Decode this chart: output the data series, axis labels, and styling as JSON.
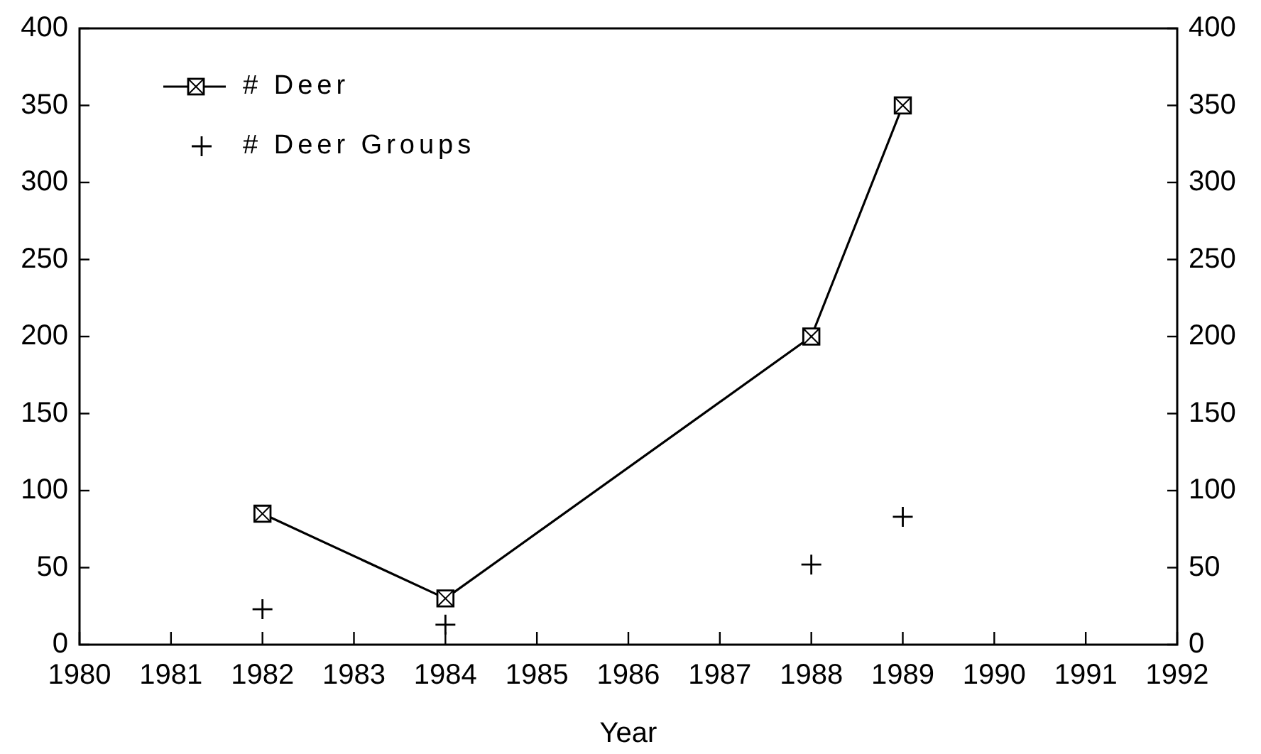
{
  "chart_data": {
    "type": "line",
    "xlabel": "Year",
    "x": [
      1982,
      1984,
      1988,
      1989
    ],
    "xlim": [
      1980,
      1992
    ],
    "xticks": [
      1980,
      1981,
      1982,
      1983,
      1984,
      1985,
      1986,
      1987,
      1988,
      1989,
      1990,
      1991,
      1992
    ],
    "ylim": [
      0,
      400
    ],
    "yticks": [
      0,
      50,
      100,
      150,
      200,
      250,
      300,
      350,
      400
    ],
    "y2lim": [
      0,
      400
    ],
    "y2ticks": [
      0,
      50,
      100,
      150,
      200,
      250,
      300,
      350,
      400
    ],
    "legend": "top left",
    "series": [
      {
        "name": "# Deer",
        "color": "#000000",
        "marker": "square",
        "values": [
          85,
          30,
          200,
          350
        ]
      },
      {
        "name": "# Deer Groups",
        "type": "scatter",
        "color": "#000000",
        "marker": "cross",
        "values": [
          23,
          13,
          52,
          83
        ]
      }
    ]
  }
}
